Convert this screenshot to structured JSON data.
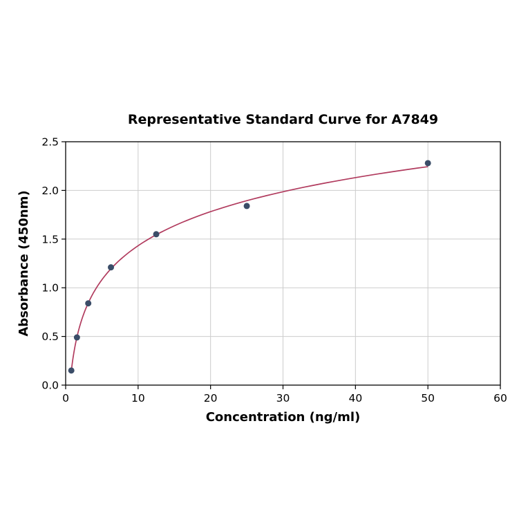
{
  "chart_data": {
    "type": "scatter",
    "title": "Representative Standard Curve for A7849",
    "xlabel": "Concentration (ng/ml)",
    "ylabel": "Absorbance (450nm)",
    "xlim": [
      0,
      60
    ],
    "ylim": [
      0.0,
      2.5
    ],
    "x_ticks": [
      0,
      10,
      20,
      30,
      40,
      50,
      60
    ],
    "y_ticks": [
      0.0,
      0.5,
      1.0,
      1.5,
      2.0,
      2.5
    ],
    "grid": true,
    "grid_color": "#cccccc",
    "legend_position": "none",
    "series": [
      {
        "name": "standard-points",
        "type": "scatter",
        "x": [
          0.78,
          1.56,
          3.12,
          6.25,
          12.5,
          25,
          50
        ],
        "y": [
          0.15,
          0.49,
          0.84,
          1.21,
          1.55,
          1.84,
          2.28
        ],
        "color": "#3b4d68"
      },
      {
        "name": "fit-curve",
        "type": "line",
        "fit": "logarithmic",
        "color": "#b13b5e"
      }
    ]
  }
}
